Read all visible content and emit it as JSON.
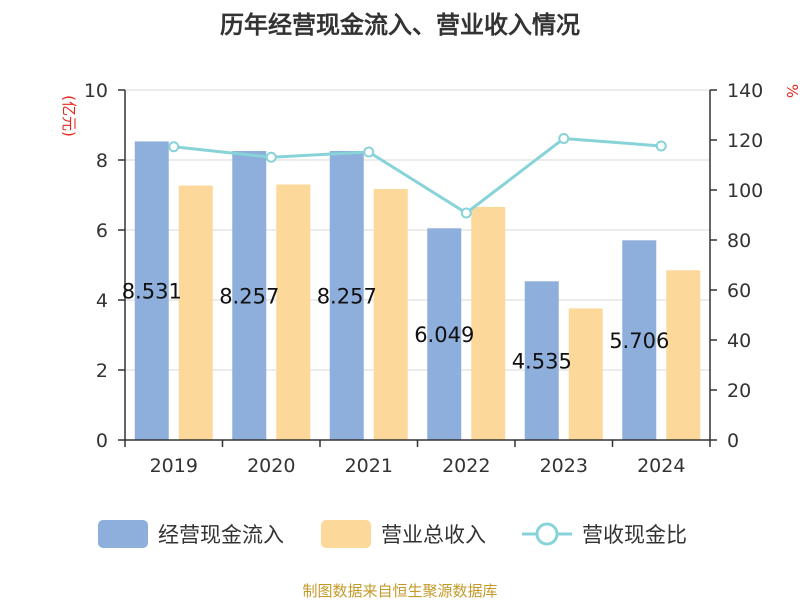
{
  "chart_data": {
    "type": "bar",
    "title": "历年经营现金流入、营业收入情况",
    "categories": [
      "2019",
      "2020",
      "2021",
      "2022",
      "2023",
      "2024"
    ],
    "left_axis": {
      "unit": "(亿元)",
      "ylim": [
        0,
        10
      ],
      "ticks": [
        0,
        2,
        4,
        6,
        8,
        10
      ]
    },
    "right_axis": {
      "unit": "%",
      "ylim": [
        0,
        140
      ],
      "ticks": [
        0,
        20,
        40,
        60,
        80,
        100,
        120,
        140
      ]
    },
    "series": [
      {
        "name": "经营现金流入",
        "type": "bar",
        "axis": "left",
        "color": "#8eaedb",
        "values": [
          8.531,
          8.257,
          8.257,
          6.049,
          4.535,
          5.706
        ],
        "labels": [
          "8.531",
          "8.257",
          "8.257",
          "6.049",
          "4.535",
          "5.706"
        ]
      },
      {
        "name": "营业总收入",
        "type": "bar",
        "axis": "left",
        "color": "#fdd89b",
        "values": [
          7.27,
          7.3,
          7.17,
          6.66,
          3.76,
          4.85
        ]
      },
      {
        "name": "营收现金比",
        "type": "line",
        "axis": "right",
        "color": "#88d3d8",
        "values": [
          117.3,
          113.1,
          115.2,
          90.8,
          120.6,
          117.6
        ]
      }
    ],
    "grid": true,
    "legend_position": "bottom"
  },
  "source": "制图数据来自恒生聚源数据库"
}
